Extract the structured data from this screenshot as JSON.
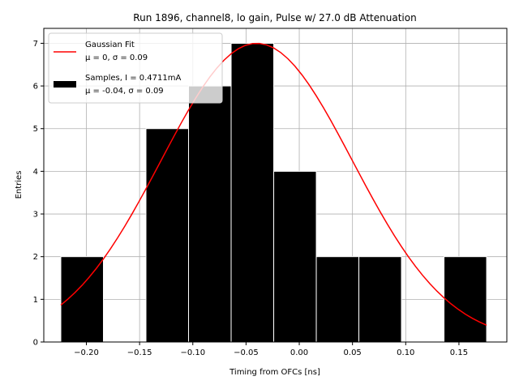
{
  "chart_data": {
    "type": "histogram",
    "title": "Run 1896, channel8, lo gain, Pulse w/ 27.0 dB Attenuation",
    "xlabel": "Timing from OFCs [ns]",
    "ylabel": "Entries",
    "xlim": [
      -0.24,
      0.195
    ],
    "ylim": [
      0,
      7.35
    ],
    "xticks": [
      -0.2,
      -0.15,
      -0.1,
      -0.05,
      0.0,
      0.05,
      0.1,
      0.15
    ],
    "xtick_labels": [
      "−0.20",
      "−0.15",
      "−0.10",
      "−0.05",
      "0.00",
      "0.05",
      "0.10",
      "0.15"
    ],
    "yticks": [
      0,
      1,
      2,
      3,
      4,
      5,
      6,
      7
    ],
    "ytick_labels": [
      "0",
      "1",
      "2",
      "3",
      "4",
      "5",
      "6",
      "7"
    ],
    "grid": true,
    "legend_position": "top-left",
    "bars": {
      "bin_edges": [
        -0.224,
        -0.184,
        -0.144,
        -0.104,
        -0.064,
        -0.024,
        0.016,
        0.056,
        0.096,
        0.136,
        0.176
      ],
      "counts": [
        2,
        0,
        5,
        6,
        7,
        4,
        2,
        2,
        0,
        2
      ],
      "color": "#000000",
      "edgecolor": "#ffffff"
    },
    "fit": {
      "mu": -0.04,
      "sigma": 0.09,
      "amplitude": 7.0,
      "x_range": [
        -0.224,
        0.176
      ],
      "color": "#ff0000"
    },
    "legend": [
      {
        "line1": "Gaussian Fit",
        "line2": "μ = 0, σ = 0.09",
        "kind": "line",
        "color": "#ff0000"
      },
      {
        "line1": "Samples, I = 0.4711mA",
        "line2": "μ = -0.04, σ = 0.09",
        "kind": "patch",
        "color": "#000000"
      }
    ]
  }
}
